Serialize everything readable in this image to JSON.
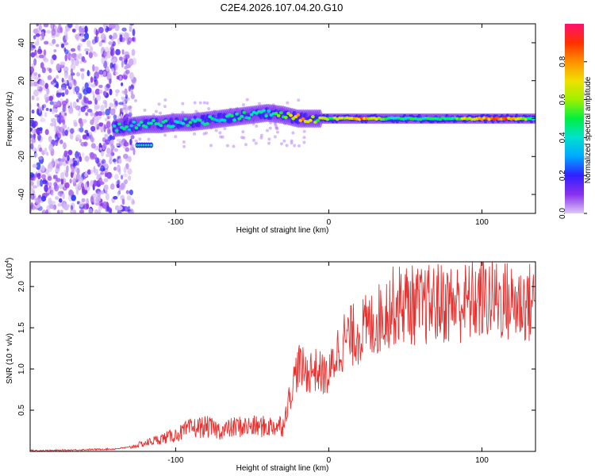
{
  "title": "C2E4.2026.107.04.20.G10",
  "colors": {
    "snr_line": "#e8302e",
    "axis": "#000000"
  },
  "colormap": [
    "#dcc8f5",
    "#8a30ee",
    "#3020ff",
    "#00a8ff",
    "#00e0d0",
    "#00f040",
    "#a0f000",
    "#f0e000",
    "#ff9000",
    "#ff3000",
    "#ff1070"
  ],
  "chart_data": [
    {
      "type": "heatmap",
      "title": "C2E4.2026.107.04.20.G10",
      "xlabel": "Height of straight line (km)",
      "ylabel": "Frequency (Hz)",
      "xlim": [
        -195,
        135
      ],
      "ylim": [
        -50,
        50
      ],
      "x_ticks": [
        -100,
        0,
        100
      ],
      "x_tick_labels": [
        "-100",
        "0",
        "100"
      ],
      "y_ticks": [
        40,
        20,
        0,
        -20,
        -40
      ],
      "y_tick_labels": [
        "40",
        "20",
        "0",
        "-20",
        "-40"
      ],
      "colorbar": {
        "label": "Normalized spectral amplitude",
        "range": [
          0,
          1
        ],
        "ticks": [
          0.0,
          0.2,
          0.4,
          0.6,
          0.8
        ],
        "tick_labels": [
          "0.0",
          "0.2",
          "0.4",
          "0.6",
          "0.8"
        ]
      },
      "ridge": {
        "description_free": true,
        "x": [
          -140,
          -130,
          -120,
          -110,
          -100,
          -90,
          -80,
          -70,
          -60,
          -50,
          -40,
          -30,
          -20,
          -10,
          0,
          20,
          40,
          60,
          80,
          100,
          120,
          135
        ],
        "freq": [
          -5,
          -4,
          -3,
          -3,
          -2,
          -2,
          -1,
          0,
          1,
          2,
          3,
          2,
          0,
          0,
          0,
          0,
          0,
          0,
          0,
          0,
          0,
          0
        ],
        "amplitude": [
          0.45,
          0.45,
          0.5,
          0.45,
          0.45,
          0.5,
          0.45,
          0.45,
          0.5,
          0.45,
          0.45,
          0.6,
          0.9,
          0.7,
          0.6,
          0.9,
          0.5,
          0.5,
          0.5,
          0.9,
          0.85,
          0.5
        ]
      },
      "noise_region_x": [
        -195,
        -135
      ],
      "secondary_track": {
        "x": [
          -125,
          -115
        ],
        "freq": -14,
        "amplitude": 0.45
      }
    },
    {
      "type": "line",
      "xlabel": "Height of straight line (km)",
      "ylabel": "SNR (10 * v/v)",
      "y_scale_label": "(x10",
      "y_scale_exponent": "4",
      "xlim": [
        -195,
        135
      ],
      "ylim": [
        0,
        2.3
      ],
      "x_ticks": [
        -100,
        0,
        100
      ],
      "x_tick_labels": [
        "-100",
        "0",
        "100"
      ],
      "y_ticks": [
        0.5,
        1.0,
        1.5,
        2.0
      ],
      "y_tick_labels": [
        "0.5",
        "1.0",
        "1.5",
        "2.0"
      ],
      "series": [
        {
          "name": "SNR",
          "x": [
            -195,
            -180,
            -160,
            -140,
            -130,
            -120,
            -110,
            -100,
            -90,
            -80,
            -70,
            -60,
            -50,
            -40,
            -30,
            -25,
            -20,
            -15,
            -10,
            -5,
            0,
            5,
            10,
            20,
            30,
            40,
            50,
            60,
            70,
            80,
            90,
            100,
            110,
            120,
            135
          ],
          "y": [
            0.01,
            0.01,
            0.02,
            0.03,
            0.05,
            0.1,
            0.15,
            0.2,
            0.28,
            0.3,
            0.25,
            0.3,
            0.3,
            0.3,
            0.32,
            0.7,
            1.05,
            0.95,
            1.0,
            0.95,
            0.9,
            1.2,
            1.35,
            1.45,
            1.55,
            1.75,
            1.8,
            1.75,
            1.8,
            1.8,
            1.8,
            1.85,
            1.85,
            1.8,
            1.8
          ]
        }
      ]
    }
  ]
}
